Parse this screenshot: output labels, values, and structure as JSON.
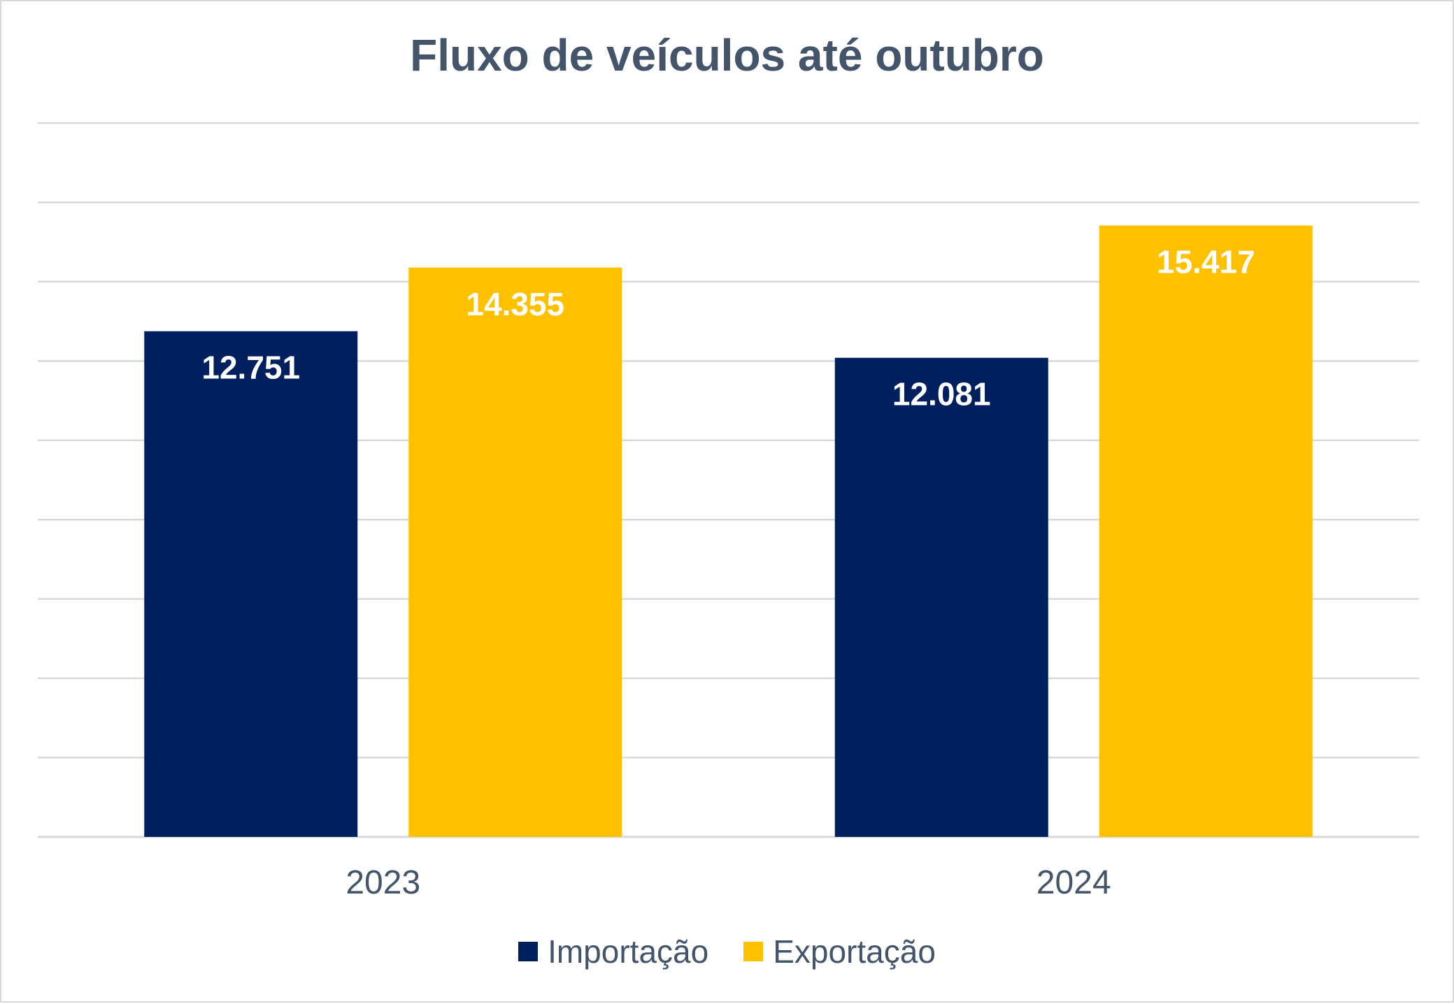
{
  "chart_data": {
    "type": "bar",
    "title": "Fluxo de veículos até outubro",
    "categories": [
      "2023",
      "2024"
    ],
    "series": [
      {
        "name": "Importação",
        "values": [
          12751,
          12081
        ],
        "labels": [
          "12.751",
          "12.081"
        ],
        "color": "#001f5f"
      },
      {
        "name": "Exportação",
        "values": [
          14355,
          15417
        ],
        "labels": [
          "14.355",
          "15.417"
        ],
        "color": "#ffc000"
      }
    ],
    "ylim": [
      0,
      18000
    ],
    "grid": true,
    "legend": "bottom",
    "xlabel": "",
    "ylabel": ""
  }
}
